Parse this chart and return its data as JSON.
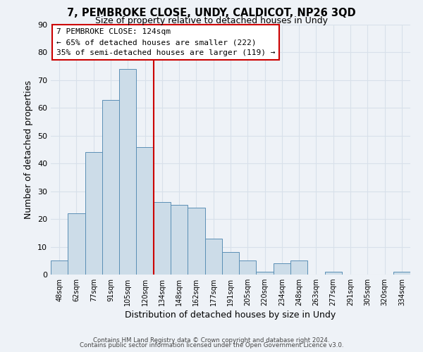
{
  "title": "7, PEMBROKE CLOSE, UNDY, CALDICOT, NP26 3QD",
  "subtitle": "Size of property relative to detached houses in Undy",
  "xlabel": "Distribution of detached houses by size in Undy",
  "ylabel": "Number of detached properties",
  "bin_labels": [
    "48sqm",
    "62sqm",
    "77sqm",
    "91sqm",
    "105sqm",
    "120sqm",
    "134sqm",
    "148sqm",
    "162sqm",
    "177sqm",
    "191sqm",
    "205sqm",
    "220sqm",
    "234sqm",
    "248sqm",
    "263sqm",
    "277sqm",
    "291sqm",
    "305sqm",
    "320sqm",
    "334sqm"
  ],
  "bar_heights": [
    5,
    22,
    44,
    63,
    74,
    46,
    26,
    25,
    24,
    13,
    8,
    5,
    1,
    4,
    5,
    0,
    1,
    0,
    0,
    0,
    1
  ],
  "bar_color": "#ccdce8",
  "bar_edgecolor": "#5a8fb5",
  "vline_x": 5.5,
  "vline_color": "#cc0000",
  "ylim": [
    0,
    90
  ],
  "yticks": [
    0,
    10,
    20,
    30,
    40,
    50,
    60,
    70,
    80,
    90
  ],
  "annotation_title": "7 PEMBROKE CLOSE: 124sqm",
  "annotation_line1": "← 65% of detached houses are smaller (222)",
  "annotation_line2": "35% of semi-detached houses are larger (119) →",
  "annotation_box_facecolor": "#ffffff",
  "annotation_box_edgecolor": "#cc0000",
  "footer1": "Contains HM Land Registry data © Crown copyright and database right 2024.",
  "footer2": "Contains public sector information licensed under the Open Government Licence v3.0.",
  "background_color": "#eef2f7",
  "grid_color": "#d8e0ea"
}
